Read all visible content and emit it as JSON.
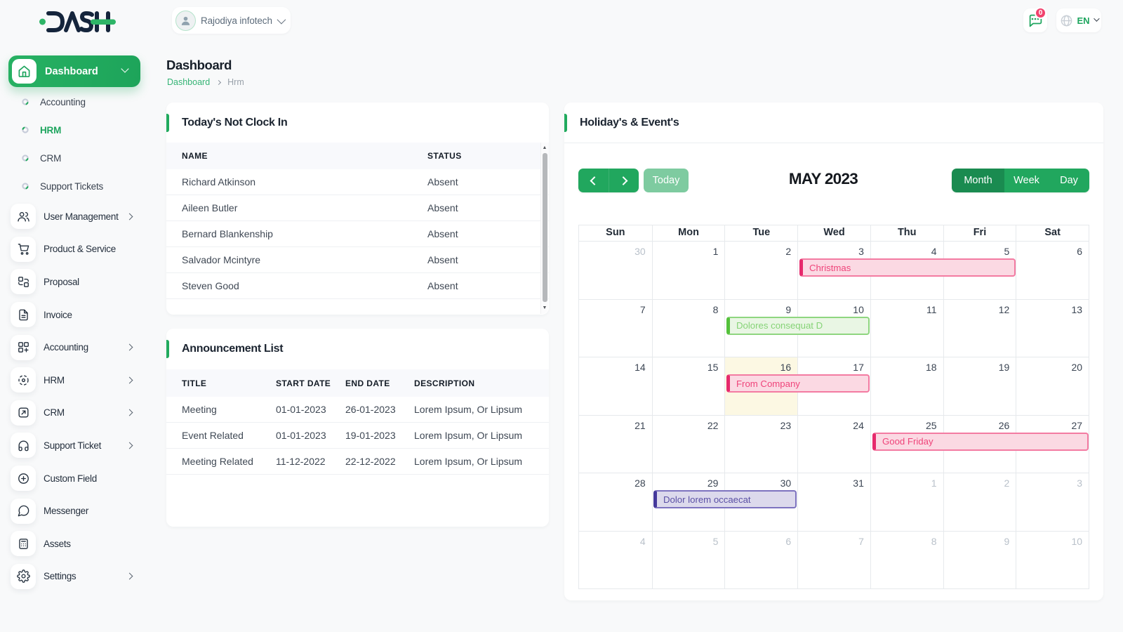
{
  "header": {
    "logo_text": "DASH",
    "company": {
      "name": "Rajodiya infotech"
    },
    "chat": {
      "badge": "0"
    },
    "language": {
      "code": "EN"
    }
  },
  "sidebar": {
    "dashboard": {
      "label": "Dashboard"
    },
    "dashboard_children": [
      {
        "label": "Accounting",
        "active": false
      },
      {
        "label": "HRM",
        "active": true
      },
      {
        "label": "CRM",
        "active": false
      },
      {
        "label": "Support Tickets",
        "active": false
      }
    ],
    "items": [
      {
        "label": "User Management",
        "icon": "users-icon",
        "expandable": true
      },
      {
        "label": "Product & Service",
        "icon": "cart-icon",
        "expandable": false
      },
      {
        "label": "Proposal",
        "icon": "proposal-icon",
        "expandable": false
      },
      {
        "label": "Invoice",
        "icon": "invoice-icon",
        "expandable": false
      },
      {
        "label": "Accounting",
        "icon": "accounting-grid-icon",
        "expandable": true
      },
      {
        "label": "HRM",
        "icon": "hrm-icon",
        "expandable": true
      },
      {
        "label": "CRM",
        "icon": "crm-icon",
        "expandable": true
      },
      {
        "label": "Support Ticket",
        "icon": "headset-icon",
        "expandable": true
      },
      {
        "label": "Custom Field",
        "icon": "plus-circle-icon",
        "expandable": false
      },
      {
        "label": "Messenger",
        "icon": "chat-bubble-icon",
        "expandable": false
      },
      {
        "label": "Assets",
        "icon": "assets-icon",
        "expandable": false
      },
      {
        "label": "Settings",
        "icon": "gear-icon",
        "expandable": true
      }
    ]
  },
  "page": {
    "title": "Dashboard",
    "breadcrumb_home": "Dashboard",
    "breadcrumb_current": "Hrm"
  },
  "not_clock_in": {
    "title": "Today's Not Clock In",
    "columns": [
      "NAME",
      "STATUS"
    ],
    "rows": [
      [
        "Richard Atkinson",
        "Absent"
      ],
      [
        "Aileen Butler",
        "Absent"
      ],
      [
        "Bernard Blankenship",
        "Absent"
      ],
      [
        "Salvador Mcintyre",
        "Absent"
      ],
      [
        "Steven Good",
        "Absent"
      ]
    ]
  },
  "announcements": {
    "title": "Announcement List",
    "columns": [
      "TITLE",
      "START DATE",
      "END DATE",
      "DESCRIPTION"
    ],
    "rows": [
      [
        "Meeting",
        "01-01-2023",
        "26-01-2023",
        "Lorem Ipsum, Or Lipsum"
      ],
      [
        "Event Related",
        "01-01-2023",
        "19-01-2023",
        "Lorem Ipsum, Or Lipsum"
      ],
      [
        "Meeting Related",
        "11-12-2022",
        "22-12-2022",
        "Lorem Ipsum, Or Lipsum"
      ]
    ]
  },
  "calendar": {
    "title": "Holiday's & Event's",
    "toolbar": {
      "today": "Today",
      "month_title": "MAY 2023",
      "views": [
        "Month",
        "Week",
        "Day"
      ],
      "active_view": "Month"
    },
    "day_names": [
      "Sun",
      "Mon",
      "Tue",
      "Wed",
      "Thu",
      "Fri",
      "Sat"
    ],
    "weeks": [
      [
        {
          "d": 30,
          "m": true
        },
        {
          "d": 1
        },
        {
          "d": 2
        },
        {
          "d": 3
        },
        {
          "d": 4
        },
        {
          "d": 5
        },
        {
          "d": 6
        }
      ],
      [
        {
          "d": 7
        },
        {
          "d": 8
        },
        {
          "d": 9
        },
        {
          "d": 10
        },
        {
          "d": 11
        },
        {
          "d": 12
        },
        {
          "d": 13
        }
      ],
      [
        {
          "d": 14
        },
        {
          "d": 15
        },
        {
          "d": 16,
          "today": true
        },
        {
          "d": 17
        },
        {
          "d": 18
        },
        {
          "d": 19
        },
        {
          "d": 20
        }
      ],
      [
        {
          "d": 21
        },
        {
          "d": 22
        },
        {
          "d": 23
        },
        {
          "d": 24
        },
        {
          "d": 25
        },
        {
          "d": 26
        },
        {
          "d": 27
        }
      ],
      [
        {
          "d": 28
        },
        {
          "d": 29
        },
        {
          "d": 30
        },
        {
          "d": 31
        },
        {
          "d": 1,
          "m": true
        },
        {
          "d": 2,
          "m": true
        },
        {
          "d": 3,
          "m": true
        }
      ],
      [
        {
          "d": 4,
          "m": true
        },
        {
          "d": 5,
          "m": true
        },
        {
          "d": 6,
          "m": true
        },
        {
          "d": 7,
          "m": true
        },
        {
          "d": 8,
          "m": true
        },
        {
          "d": 9,
          "m": true
        },
        {
          "d": 10,
          "m": true
        }
      ]
    ],
    "events": [
      {
        "title": "Christmas",
        "week": 0,
        "col": 3,
        "span": 3,
        "theme": "pink"
      },
      {
        "title": "Dolores consequat D",
        "week": 1,
        "col": 2,
        "span": 2,
        "theme": "green"
      },
      {
        "title": "From Company",
        "week": 2,
        "col": 2,
        "span": 2,
        "theme": "pink"
      },
      {
        "title": "Good Friday",
        "week": 3,
        "col": 4,
        "span": 3,
        "theme": "pink"
      },
      {
        "title": "Dolor lorem occaecat",
        "week": 4,
        "col": 1,
        "span": 2,
        "theme": "purple"
      }
    ],
    "theme_colors": {
      "pink": {
        "bg": "#fbd9e3",
        "border": "#f37ba2",
        "accent": "#e62a6c",
        "text": "#ef447a"
      },
      "green": {
        "bg": "#e9f6e4",
        "border": "#8fd680",
        "accent": "#54c13b",
        "text": "#86d377"
      },
      "purple": {
        "bg": "#dcd9ec",
        "border": "#7d73bf",
        "accent": "#45399b",
        "text": "#5a50a5"
      }
    }
  },
  "colors": {
    "primary": "#21aa5e",
    "primary_dark": "#1a8b50",
    "primary_light": "#7ecba0"
  }
}
